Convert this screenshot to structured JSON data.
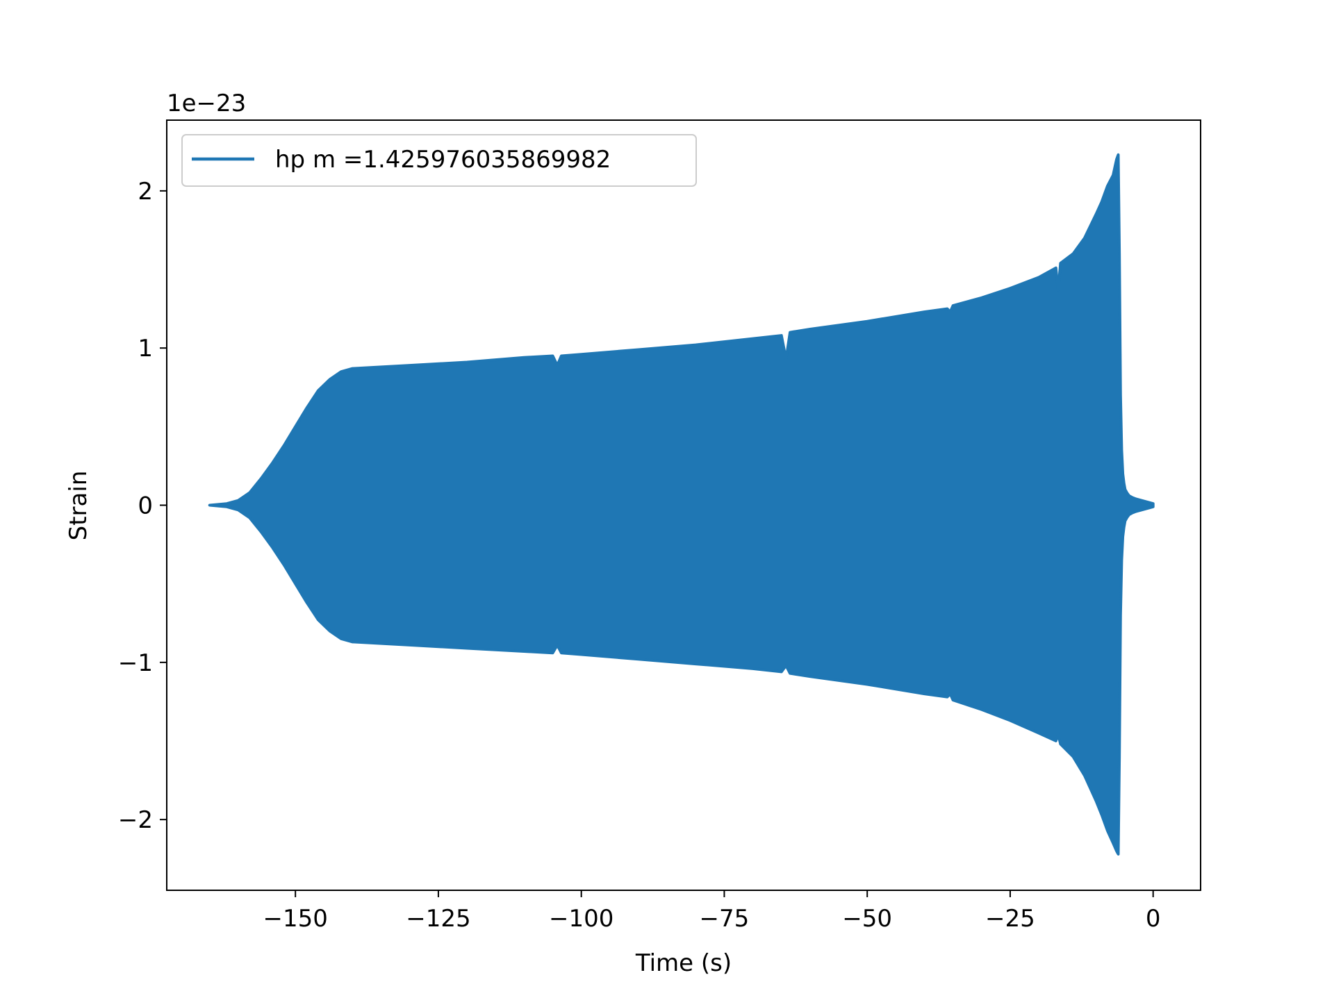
{
  "chart_data": {
    "type": "line",
    "title": "",
    "xlabel": "Time (s)",
    "ylabel": "Strain",
    "y_offset_label": "1e−23",
    "xlim": [
      -172.5,
      8.3
    ],
    "ylim": [
      -2.45,
      2.45
    ],
    "xticks": [
      -150,
      -125,
      -100,
      -75,
      -50,
      -25,
      0
    ],
    "xtick_labels": [
      "−150",
      "−125",
      "−100",
      "−75",
      "−50",
      "−25",
      "0"
    ],
    "yticks": [
      -2,
      -1,
      0,
      1,
      2
    ],
    "ytick_labels": [
      "−2",
      "−1",
      "0",
      "1",
      "2"
    ],
    "grid": false,
    "legend_position": "upper-left",
    "series": [
      {
        "name": "hp m =1.425976035869982",
        "color": "#1f77b4",
        "render": "oscillation-envelope",
        "envelope": {
          "time": [
            -165,
            -162,
            -160,
            -158,
            -156,
            -154,
            -152,
            -150,
            -148,
            -146,
            -144,
            -142,
            -140,
            -130,
            -120,
            -110,
            -105,
            -104.2,
            -103.5,
            -100,
            -90,
            -80,
            -70,
            -65,
            -64.2,
            -63.5,
            -60,
            -50,
            -40,
            -36,
            -35.5,
            -35,
            -30,
            -25,
            -20,
            -17,
            -16.6,
            -16.2,
            -14,
            -12,
            -10,
            -9,
            -8,
            -7,
            -6.4,
            -6.1,
            -5.9,
            -5.7,
            -5.5,
            -5.3,
            -5.1,
            -4.9,
            -4.6,
            -4.2,
            -3.7,
            -3,
            -2,
            -1,
            0
          ],
          "upper": [
            0.0,
            0.01,
            0.03,
            0.08,
            0.17,
            0.27,
            0.38,
            0.5,
            0.62,
            0.73,
            0.8,
            0.85,
            0.87,
            0.89,
            0.91,
            0.94,
            0.95,
            0.89,
            0.95,
            0.96,
            0.99,
            1.02,
            1.06,
            1.08,
            0.93,
            1.1,
            1.12,
            1.17,
            1.23,
            1.25,
            1.23,
            1.27,
            1.32,
            1.38,
            1.45,
            1.51,
            1.37,
            1.54,
            1.6,
            1.7,
            1.85,
            1.93,
            2.03,
            2.1,
            2.2,
            2.23,
            1.6,
            0.7,
            0.35,
            0.2,
            0.14,
            0.1,
            0.08,
            0.06,
            0.05,
            0.04,
            0.03,
            0.02,
            0.01
          ],
          "lower": [
            0.0,
            -0.01,
            -0.03,
            -0.08,
            -0.17,
            -0.27,
            -0.38,
            -0.5,
            -0.62,
            -0.73,
            -0.8,
            -0.85,
            -0.87,
            -0.89,
            -0.91,
            -0.93,
            -0.94,
            -0.89,
            -0.94,
            -0.95,
            -0.98,
            -1.01,
            -1.04,
            -1.06,
            -1.02,
            -1.07,
            -1.09,
            -1.14,
            -1.2,
            -1.22,
            -1.2,
            -1.24,
            -1.3,
            -1.37,
            -1.45,
            -1.5,
            -1.46,
            -1.52,
            -1.6,
            -1.72,
            -1.88,
            -1.97,
            -2.07,
            -2.15,
            -2.2,
            -2.22,
            -1.6,
            -0.7,
            -0.35,
            -0.2,
            -0.14,
            -0.1,
            -0.08,
            -0.06,
            -0.05,
            -0.04,
            -0.03,
            -0.02,
            -0.01
          ]
        }
      }
    ]
  }
}
